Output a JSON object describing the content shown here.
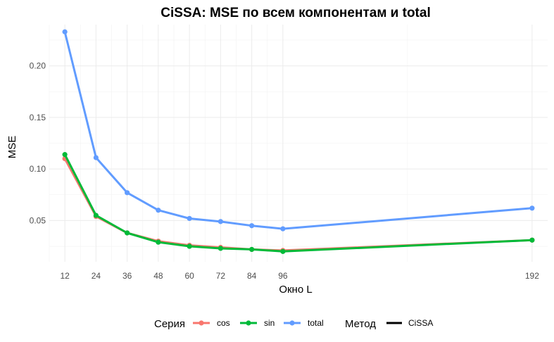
{
  "chart_data": {
    "type": "line",
    "title": "CiSSA: MSE по всем компонентам и total",
    "xlabel": "Окно L",
    "ylabel": "MSE",
    "x": [
      12,
      24,
      36,
      48,
      60,
      72,
      84,
      96,
      192
    ],
    "x_ticks": [
      12,
      24,
      36,
      48,
      60,
      72,
      84,
      96,
      192
    ],
    "y_ticks": [
      0.05,
      0.1,
      0.15,
      0.2
    ],
    "y_tick_labels": [
      "0.05",
      "0.10",
      "0.15",
      "0.20"
    ],
    "xlim": [
      6,
      198
    ],
    "ylim": [
      0.01,
      0.24
    ],
    "grid": true,
    "legend_position": "bottom",
    "series": [
      {
        "name": "cos",
        "color": "#F8766D",
        "values": [
          0.11,
          0.054,
          0.038,
          0.03,
          0.026,
          0.024,
          0.022,
          0.021,
          0.031
        ]
      },
      {
        "name": "sin",
        "color": "#00BA38",
        "values": [
          0.114,
          0.055,
          0.038,
          0.029,
          0.025,
          0.023,
          0.022,
          0.02,
          0.031
        ]
      },
      {
        "name": "total",
        "color": "#619CFF",
        "values": [
          0.233,
          0.111,
          0.077,
          0.06,
          0.052,
          0.049,
          0.045,
          0.042,
          0.062
        ]
      }
    ],
    "legend": {
      "series_title": "Серия",
      "method_title": "Метод",
      "method_entries": [
        {
          "name": "CiSSA",
          "color": "#000000"
        }
      ]
    }
  }
}
